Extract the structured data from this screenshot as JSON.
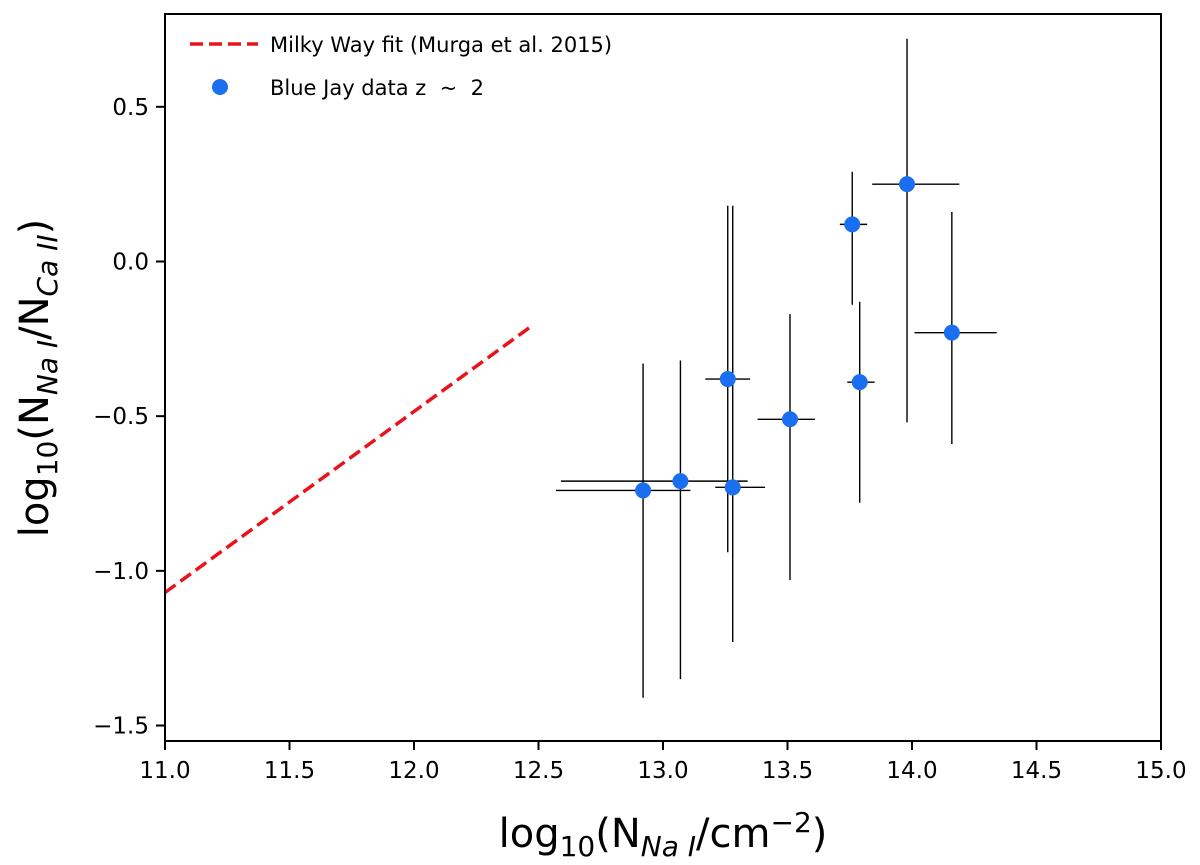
{
  "chart_data": {
    "type": "scatter",
    "xlim": [
      11.0,
      15.0
    ],
    "ylim": [
      -1.55,
      0.8
    ],
    "x_ticks": [
      "11.0",
      "11.5",
      "12.0",
      "12.5",
      "13.0",
      "13.5",
      "14.0",
      "14.5",
      "15.0"
    ],
    "y_ticks": [
      "0.5",
      "0.0",
      "-0.5",
      "-1.0",
      "-1.5"
    ],
    "xlabel": "log10(NNa I/cm−2)",
    "ylabel": "log10(NNa I/NCa II)",
    "xlabel_parts": {
      "log": "log",
      "log_sub": "10",
      "open": "(N",
      "sub": "Na I",
      "rest": "/cm",
      "sup": "−2",
      "close": ")"
    },
    "ylabel_parts": {
      "log": "log",
      "log_sub": "10",
      "open": "(N",
      "sub1": "Na I",
      "mid": "/N",
      "sub2": "Ca II",
      "close": ")"
    },
    "legend_position": "top-left",
    "grid": false,
    "series": [
      {
        "name": "Milky Way fit (Murga et al. 2015)",
        "kind": "line",
        "style": "dashed",
        "color": "#e8141c",
        "x": [
          11.0,
          12.47
        ],
        "y": [
          -1.07,
          -0.21
        ]
      },
      {
        "name": "Blue Jay data z  ~  2",
        "kind": "errorbar",
        "color": "#1a6ff0",
        "points": [
          {
            "x": 12.92,
            "y": -0.74,
            "xerr": [
              0.35,
              0.19
            ],
            "yerr": [
              0.67,
              0.41
            ]
          },
          {
            "x": 13.07,
            "y": -0.71,
            "xerr": [
              0.48,
              0.27
            ],
            "yerr": [
              0.64,
              0.39
            ]
          },
          {
            "x": 13.26,
            "y": -0.38,
            "xerr": [
              0.09,
              0.09
            ],
            "yerr": [
              0.56,
              0.56
            ]
          },
          {
            "x": 13.28,
            "y": -0.73,
            "xerr": [
              0.07,
              0.13
            ],
            "yerr": [
              0.5,
              0.91
            ]
          },
          {
            "x": 13.51,
            "y": -0.51,
            "xerr": [
              0.13,
              0.1
            ],
            "yerr": [
              0.52,
              0.34
            ]
          },
          {
            "x": 13.76,
            "y": 0.12,
            "xerr": [
              0.05,
              0.06
            ],
            "yerr": [
              0.26,
              0.17
            ]
          },
          {
            "x": 13.79,
            "y": -0.39,
            "xerr": [
              0.05,
              0.06
            ],
            "yerr": [
              0.39,
              0.26
            ]
          },
          {
            "x": 13.98,
            "y": 0.25,
            "xerr": [
              0.14,
              0.21
            ],
            "yerr": [
              0.77,
              0.47
            ]
          },
          {
            "x": 14.16,
            "y": -0.23,
            "xerr": [
              0.15,
              0.18
            ],
            "yerr": [
              0.36,
              0.39
            ]
          }
        ]
      }
    ]
  }
}
